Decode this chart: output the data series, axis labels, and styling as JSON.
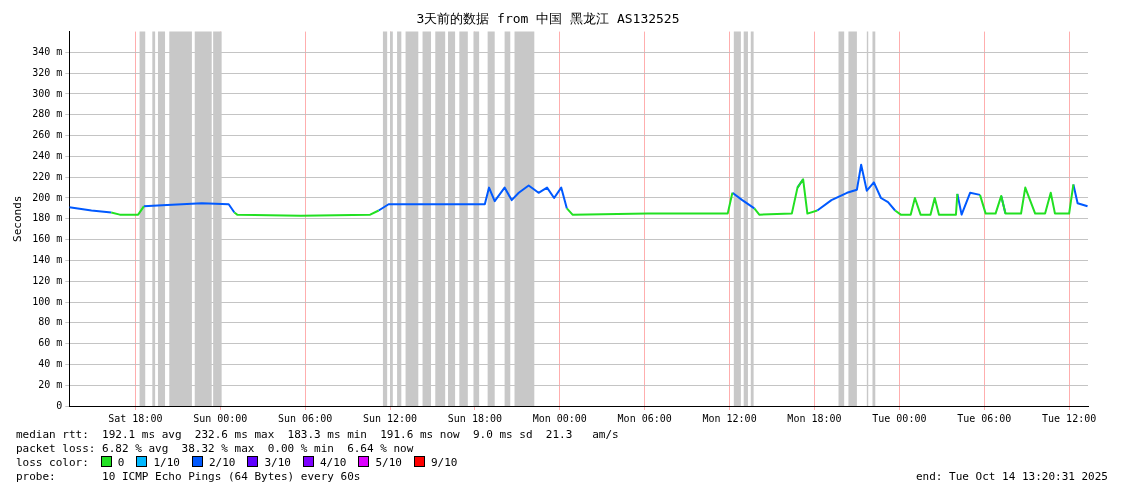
{
  "chart_data": {
    "type": "line",
    "title": "3天前的数据 from 中国 黑龙江 AS132525",
    "ylabel": "Seconds",
    "x": [
      "2025-10-11T13:20",
      "2025-10-11T14:54",
      "2025-10-11T16:18",
      "2025-10-11T16:54",
      "2025-10-11T18:12",
      "2025-10-11T18:36",
      "2025-10-11T19:54",
      "2025-10-11T22:42",
      "2025-10-12T00:36",
      "2025-10-12T01:00",
      "2025-10-12T01:12",
      "2025-10-12T05:42",
      "2025-10-12T10:36",
      "2025-10-12T11:12",
      "2025-10-12T11:54",
      "2025-10-12T15:30",
      "2025-10-12T18:00",
      "2025-10-12T18:42",
      "2025-10-12T19:00",
      "2025-10-12T19:24",
      "2025-10-12T20:06",
      "2025-10-12T20:36",
      "2025-10-12T21:06",
      "2025-10-12T21:48",
      "2025-10-12T22:30",
      "2025-10-12T23:06",
      "2025-10-12T23:36",
      "2025-10-13T00:06",
      "2025-10-13T00:30",
      "2025-10-13T00:54",
      "2025-10-13T06:12",
      "2025-10-13T11:52",
      "2025-10-13T12:12",
      "2025-10-13T12:54",
      "2025-10-13T13:45",
      "2025-10-13T14:06",
      "2025-10-13T16:24",
      "2025-10-13T16:48",
      "2025-10-13T17:12",
      "2025-10-13T17:30",
      "2025-10-13T18:12",
      "2025-10-13T19:12",
      "2025-10-13T20:18",
      "2025-10-13T21:00",
      "2025-10-13T21:18",
      "2025-10-13T21:42",
      "2025-10-13T22:12",
      "2025-10-13T22:42",
      "2025-10-13T23:12",
      "2025-10-13T23:42",
      "2025-10-14T00:06",
      "2025-10-14T00:48",
      "2025-10-14T01:06",
      "2025-10-14T01:30",
      "2025-10-14T02:12",
      "2025-10-14T02:30",
      "2025-10-14T02:48",
      "2025-10-14T04:00",
      "2025-10-14T04:06",
      "2025-10-14T04:24",
      "2025-10-14T05:00",
      "2025-10-14T05:42",
      "2025-10-14T06:06",
      "2025-10-14T06:48",
      "2025-10-14T07:12",
      "2025-10-14T07:30",
      "2025-10-14T08:36",
      "2025-10-14T08:54",
      "2025-10-14T09:36",
      "2025-10-14T10:18",
      "2025-10-14T10:42",
      "2025-10-14T11:00",
      "2025-10-14T12:00",
      "2025-10-14T12:18",
      "2025-10-14T12:36",
      "2025-10-14T13:18"
    ],
    "series": [
      {
        "name": "0",
        "color": "#22e022",
        "values": [
          null,
          null,
          186,
          184,
          184,
          192,
          null,
          null,
          null,
          186,
          184,
          183,
          184,
          188,
          null,
          null,
          null,
          null,
          null,
          null,
          null,
          null,
          null,
          null,
          null,
          null,
          null,
          null,
          190,
          184,
          185,
          185,
          205,
          null,
          190,
          184,
          185,
          210,
          218,
          185,
          188,
          null,
          null,
          null,
          null,
          null,
          null,
          null,
          null,
          188,
          184,
          184,
          200,
          184,
          184,
          200,
          184,
          184,
          204,
          null,
          null,
          203,
          185,
          185,
          202,
          185,
          185,
          210,
          185,
          185,
          205,
          185,
          185,
          213,
          null,
          null
        ]
      },
      {
        "name": "1/10",
        "color": "#00b8ff",
        "values": [
          null,
          null,
          null,
          null,
          null,
          null,
          null,
          null,
          null,
          null,
          null,
          null,
          null,
          null,
          null,
          null,
          null,
          null,
          null,
          null,
          null,
          null,
          null,
          null,
          null,
          null,
          null,
          null,
          null,
          null,
          null,
          null,
          null,
          null,
          null,
          null,
          null,
          null,
          null,
          null,
          null,
          null,
          null,
          null,
          null,
          null,
          null,
          null,
          null,
          null,
          null,
          null,
          null,
          null,
          null,
          null,
          null,
          null,
          null,
          null,
          null,
          null,
          null,
          null,
          null,
          null,
          null,
          null,
          null,
          null,
          null,
          null,
          null,
          null,
          null,
          null
        ]
      },
      {
        "name": "2/10",
        "color": "#0059ff",
        "values": [
          191,
          188,
          186,
          null,
          null,
          192,
          193,
          195,
          194,
          186,
          null,
          null,
          null,
          188,
          194,
          194,
          194,
          194,
          210,
          197,
          210,
          198,
          205,
          212,
          205,
          210,
          200,
          210,
          190,
          null,
          null,
          null,
          205,
          198,
          190,
          null,
          null,
          210,
          218,
          null,
          188,
          198,
          205,
          208,
          232,
          207,
          215,
          200,
          196,
          188,
          null,
          null,
          null,
          null,
          null,
          null,
          null,
          null,
          204,
          184,
          205,
          203,
          null,
          null,
          202,
          185,
          null,
          null,
          null,
          null,
          null,
          null,
          null,
          213,
          195,
          192
        ]
      },
      {
        "name": "3/10",
        "color": "#5e00ff",
        "values": [
          null,
          null,
          null,
          null,
          null,
          null,
          null,
          null,
          null,
          null,
          null,
          null,
          null,
          null,
          null,
          null,
          null,
          null,
          null,
          null,
          null,
          null,
          null,
          null,
          null,
          null,
          null,
          null,
          null,
          null,
          null,
          null,
          null,
          null,
          null,
          null,
          null,
          null,
          null,
          null,
          null,
          null,
          null,
          null,
          null,
          null,
          null,
          null,
          null,
          null,
          null,
          null,
          null,
          null,
          null,
          null,
          null,
          null,
          null,
          null,
          null,
          null,
          null,
          null,
          null,
          null,
          null,
          null,
          null,
          null,
          null,
          null,
          null,
          null,
          null,
          null
        ]
      },
      {
        "name": "4/10",
        "color": "#7e00ff",
        "values": [
          null,
          null,
          null,
          null,
          null,
          null,
          null,
          null,
          null,
          null,
          null,
          null,
          null,
          null,
          null,
          null,
          null,
          null,
          null,
          null,
          null,
          null,
          null,
          null,
          null,
          null,
          null,
          null,
          null,
          null,
          null,
          null,
          null,
          null,
          null,
          null,
          null,
          null,
          null,
          null,
          null,
          null,
          null,
          null,
          null,
          null,
          null,
          null,
          null,
          null,
          null,
          null,
          null,
          null,
          null,
          null,
          null,
          null,
          null,
          null,
          null,
          null,
          null,
          null,
          null,
          null,
          null,
          null,
          null,
          null,
          null,
          null,
          null,
          null,
          null,
          null
        ]
      },
      {
        "name": "5/10",
        "color": "#dd00ff",
        "values": [
          null,
          null,
          null,
          null,
          null,
          null,
          null,
          null,
          null,
          null,
          null,
          null,
          null,
          null,
          null,
          null,
          null,
          null,
          null,
          null,
          null,
          null,
          null,
          null,
          null,
          null,
          null,
          null,
          null,
          null,
          null,
          null,
          null,
          null,
          null,
          null,
          null,
          null,
          null,
          null,
          null,
          null,
          null,
          null,
          null,
          null,
          null,
          null,
          null,
          null,
          null,
          null,
          null,
          null,
          null,
          null,
          null,
          null,
          null,
          null,
          null,
          null,
          null,
          null,
          null,
          null,
          null,
          null,
          null,
          null,
          null,
          null,
          null,
          null,
          null,
          null
        ]
      },
      {
        "name": "9/10",
        "color": "#ff0000",
        "values": [
          null,
          null,
          null,
          null,
          null,
          null,
          null,
          null,
          null,
          null,
          null,
          null,
          null,
          null,
          null,
          null,
          null,
          null,
          null,
          null,
          null,
          null,
          null,
          null,
          null,
          null,
          null,
          null,
          null,
          null,
          null,
          null,
          null,
          null,
          null,
          null,
          null,
          null,
          null,
          null,
          null,
          null,
          null,
          null,
          null,
          null,
          null,
          null,
          null,
          null,
          null,
          null,
          null,
          null,
          null,
          null,
          null,
          null,
          null,
          null,
          null,
          null,
          null,
          null,
          null,
          null,
          null,
          null,
          null,
          null,
          null,
          null,
          null,
          null,
          null,
          null
        ]
      }
    ],
    "bands": [
      {
        "axis": "x",
        "from": "2025-10-11T18:18",
        "to": "2025-10-11T18:42",
        "color": "#c8c8c8"
      },
      {
        "axis": "x",
        "from": "2025-10-11T19:12",
        "to": "2025-10-11T19:24",
        "color": "#c8c8c8"
      },
      {
        "axis": "x",
        "from": "2025-10-11T19:36",
        "to": "2025-10-11T20:06",
        "color": "#c8c8c8"
      },
      {
        "axis": "x",
        "from": "2025-10-11T20:24",
        "to": "2025-10-11T22:00",
        "color": "#c8c8c8"
      },
      {
        "axis": "x",
        "from": "2025-10-11T22:12",
        "to": "2025-10-11T23:24",
        "color": "#c8c8c8"
      },
      {
        "axis": "x",
        "from": "2025-10-11T23:30",
        "to": "2025-10-12T00:06",
        "color": "#c8c8c8"
      },
      {
        "axis": "x",
        "from": "2025-10-12T11:30",
        "to": "2025-10-12T11:48",
        "color": "#c8c8c8"
      },
      {
        "axis": "x",
        "from": "2025-10-12T12:00",
        "to": "2025-10-12T12:12",
        "color": "#c8c8c8"
      },
      {
        "axis": "x",
        "from": "2025-10-12T12:30",
        "to": "2025-10-12T12:48",
        "color": "#c8c8c8"
      },
      {
        "axis": "x",
        "from": "2025-10-12T13:06",
        "to": "2025-10-12T14:00",
        "color": "#c8c8c8"
      },
      {
        "axis": "x",
        "from": "2025-10-12T14:18",
        "to": "2025-10-12T14:54",
        "color": "#c8c8c8"
      },
      {
        "axis": "x",
        "from": "2025-10-12T15:12",
        "to": "2025-10-12T15:54",
        "color": "#c8c8c8"
      },
      {
        "axis": "x",
        "from": "2025-10-12T16:06",
        "to": "2025-10-12T16:36",
        "color": "#c8c8c8"
      },
      {
        "axis": "x",
        "from": "2025-10-12T16:54",
        "to": "2025-10-12T17:30",
        "color": "#c8c8c8"
      },
      {
        "axis": "x",
        "from": "2025-10-12T17:54",
        "to": "2025-10-12T18:18",
        "color": "#c8c8c8"
      },
      {
        "axis": "x",
        "from": "2025-10-12T18:54",
        "to": "2025-10-12T19:24",
        "color": "#c8c8c8"
      },
      {
        "axis": "x",
        "from": "2025-10-12T20:06",
        "to": "2025-10-12T20:30",
        "color": "#c8c8c8"
      },
      {
        "axis": "x",
        "from": "2025-10-12T20:48",
        "to": "2025-10-12T22:12",
        "color": "#c8c8c8"
      },
      {
        "axis": "x",
        "from": "2025-10-13T12:18",
        "to": "2025-10-13T12:48",
        "color": "#c8c8c8"
      },
      {
        "axis": "x",
        "from": "2025-10-13T13:00",
        "to": "2025-10-13T13:18",
        "color": "#c8c8c8"
      },
      {
        "axis": "x",
        "from": "2025-10-13T13:30",
        "to": "2025-10-13T13:42",
        "color": "#c8c8c8"
      },
      {
        "axis": "x",
        "from": "2025-10-13T19:42",
        "to": "2025-10-13T20:06",
        "color": "#c8c8c8"
      },
      {
        "axis": "x",
        "from": "2025-10-13T20:24",
        "to": "2025-10-13T21:00",
        "color": "#c8c8c8"
      },
      {
        "axis": "x",
        "from": "2025-10-13T21:42",
        "to": "2025-10-13T21:48",
        "color": "#c8c8c8"
      },
      {
        "axis": "x",
        "from": "2025-10-13T22:06",
        "to": "2025-10-13T22:18",
        "color": "#c8c8c8"
      }
    ],
    "xlim": [
      "2025-10-11T13:20",
      "2025-10-14T13:20"
    ],
    "xticks": [
      {
        "value": "2025-10-11T18:00",
        "label": "Sat 18:00"
      },
      {
        "value": "2025-10-12T00:00",
        "label": "Sun 00:00"
      },
      {
        "value": "2025-10-12T06:00",
        "label": "Sun 06:00"
      },
      {
        "value": "2025-10-12T12:00",
        "label": "Sun 12:00"
      },
      {
        "value": "2025-10-12T18:00",
        "label": "Sun 18:00"
      },
      {
        "value": "2025-10-13T00:00",
        "label": "Mon 00:00"
      },
      {
        "value": "2025-10-13T06:00",
        "label": "Mon 06:00"
      },
      {
        "value": "2025-10-13T12:00",
        "label": "Mon 12:00"
      },
      {
        "value": "2025-10-13T18:00",
        "label": "Mon 18:00"
      },
      {
        "value": "2025-10-14T00:00",
        "label": "Tue 00:00"
      },
      {
        "value": "2025-10-14T06:00",
        "label": "Tue 06:00"
      },
      {
        "value": "2025-10-14T12:00",
        "label": "Tue 12:00"
      }
    ],
    "ylim": [
      0,
      360
    ],
    "yticks": [
      0,
      {
        "value": 20,
        "label": "20 m"
      },
      {
        "value": 40,
        "label": "40 m"
      },
      {
        "value": 60,
        "label": "60 m"
      },
      {
        "value": 80,
        "label": "80 m"
      },
      {
        "value": 100,
        "label": "100 m"
      },
      {
        "value": 120,
        "label": "120 m"
      },
      {
        "value": 140,
        "label": "140 m"
      },
      {
        "value": 160,
        "label": "160 m"
      },
      {
        "value": 180,
        "label": "180 m"
      },
      {
        "value": 200,
        "label": "200 m"
      },
      {
        "value": 220,
        "label": "220 m"
      },
      {
        "value": 240,
        "label": "240 m"
      },
      {
        "value": 260,
        "label": "260 m"
      },
      {
        "value": 280,
        "label": "280 m"
      },
      {
        "value": 300,
        "label": "300 m"
      },
      {
        "value": 320,
        "label": "320 m"
      },
      {
        "value": 340,
        "label": "340 m"
      }
    ],
    "grid": true,
    "legend": "bottom left",
    "legend_title": "loss color:",
    "marker": "none",
    "annotations": [
      "median rtt:  192.1 ms avg  232.6 ms max  183.3 ms min  191.6 ms now  9.0 ms sd  21.3   am/s",
      "packet loss: 6.82 % avg  38.32 % max  0.00 % min  6.64 % now",
      "probe:       10 ICMP Echo Pings (64 Bytes) every 60s",
      "end: Tue Oct 14 13:20:31 2025"
    ]
  }
}
